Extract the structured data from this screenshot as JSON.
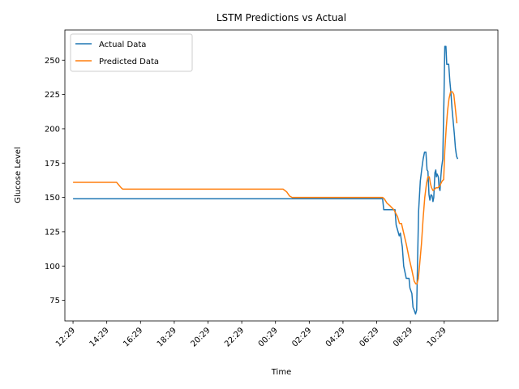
{
  "chart_data": {
    "type": "line",
    "title": "LSTM Predictions vs Actual",
    "xlabel": "Time",
    "ylabel": "Glucose Level",
    "ylim": [
      60,
      272
    ],
    "yticks": [
      75,
      100,
      125,
      150,
      175,
      200,
      225,
      250
    ],
    "xticks": [
      "12:29",
      "14:29",
      "16:29",
      "18:29",
      "20:29",
      "22:29",
      "00:29",
      "02:29",
      "04:29",
      "06:29",
      "08:29",
      "10:29"
    ],
    "xlim": [
      "12:00",
      "13:40+1"
    ],
    "grid": false,
    "legend_position": "top-left",
    "series": [
      {
        "name": "Actual Data",
        "color": "#1f77b4",
        "points": [
          [
            "12:29",
            149
          ],
          [
            "06:29",
            149
          ],
          [
            "06:50",
            149
          ],
          [
            "06:54",
            141
          ],
          [
            "07:34",
            141
          ],
          [
            "07:38",
            130
          ],
          [
            "07:49",
            122
          ],
          [
            "07:53",
            124
          ],
          [
            "08:00",
            114
          ],
          [
            "08:05",
            100
          ],
          [
            "08:14",
            91
          ],
          [
            "08:24",
            91
          ],
          [
            "08:27",
            84
          ],
          [
            "08:34",
            80
          ],
          [
            "08:38",
            70
          ],
          [
            "08:42",
            68
          ],
          [
            "08:47",
            65
          ],
          [
            "08:51",
            68
          ],
          [
            "08:54",
            100
          ],
          [
            "08:58",
            140
          ],
          [
            "09:04",
            162
          ],
          [
            "09:10",
            172
          ],
          [
            "09:14",
            178
          ],
          [
            "09:19",
            183
          ],
          [
            "09:24",
            183
          ],
          [
            "09:28",
            170
          ],
          [
            "09:31",
            169
          ],
          [
            "09:35",
            152
          ],
          [
            "09:38",
            148
          ],
          [
            "09:42",
            152
          ],
          [
            "09:46",
            151
          ],
          [
            "09:49",
            147
          ],
          [
            "09:52",
            150
          ],
          [
            "09:56",
            168
          ],
          [
            "09:59",
            170
          ],
          [
            "10:01",
            165
          ],
          [
            "10:04",
            167
          ],
          [
            "10:08",
            165
          ],
          [
            "10:11",
            157
          ],
          [
            "10:14",
            155
          ],
          [
            "10:17",
            165
          ],
          [
            "10:20",
            172
          ],
          [
            "10:24",
            178
          ],
          [
            "10:28",
            220
          ],
          [
            "10:31",
            260
          ],
          [
            "10:35",
            260
          ],
          [
            "10:38",
            247
          ],
          [
            "10:45",
            247
          ],
          [
            "10:49",
            235
          ],
          [
            "10:53",
            226
          ],
          [
            "10:57",
            214
          ],
          [
            "11:01",
            205
          ],
          [
            "11:05",
            196
          ],
          [
            "11:09",
            186
          ],
          [
            "11:13",
            180
          ],
          [
            "11:17",
            178
          ]
        ]
      },
      {
        "name": "Predicted Data",
        "color": "#ff7f0e",
        "points": [
          [
            "12:29",
            161
          ],
          [
            "15:04",
            161
          ],
          [
            "15:12",
            159
          ],
          [
            "15:20",
            157
          ],
          [
            "15:26",
            156
          ],
          [
            "00:56",
            156
          ],
          [
            "01:09",
            154
          ],
          [
            "01:19",
            151
          ],
          [
            "01:28",
            150
          ],
          [
            "06:50",
            150
          ],
          [
            "06:56",
            149
          ],
          [
            "07:05",
            146
          ],
          [
            "07:16",
            144
          ],
          [
            "07:30",
            141
          ],
          [
            "07:43",
            136
          ],
          [
            "07:50",
            131
          ],
          [
            "07:57",
            131
          ],
          [
            "08:05",
            124
          ],
          [
            "08:14",
            116
          ],
          [
            "08:24",
            106
          ],
          [
            "08:34",
            97
          ],
          [
            "08:42",
            89
          ],
          [
            "08:48",
            87
          ],
          [
            "08:52",
            87
          ],
          [
            "08:57",
            91
          ],
          [
            "09:02",
            102
          ],
          [
            "09:08",
            116
          ],
          [
            "09:14",
            135
          ],
          [
            "09:20",
            150
          ],
          [
            "09:26",
            160
          ],
          [
            "09:31",
            165
          ],
          [
            "09:36",
            165
          ],
          [
            "09:40",
            160
          ],
          [
            "09:44",
            157
          ],
          [
            "09:49",
            155
          ],
          [
            "09:55",
            156
          ],
          [
            "10:00",
            157
          ],
          [
            "10:06",
            157
          ],
          [
            "10:12",
            158
          ],
          [
            "10:17",
            160
          ],
          [
            "10:22",
            162
          ],
          [
            "10:27",
            163
          ],
          [
            "10:31",
            184
          ],
          [
            "10:36",
            200
          ],
          [
            "10:41",
            213
          ],
          [
            "10:46",
            222
          ],
          [
            "10:52",
            227
          ],
          [
            "10:58",
            227
          ],
          [
            "11:03",
            225
          ],
          [
            "11:08",
            216
          ],
          [
            "11:14",
            204
          ]
        ]
      }
    ]
  }
}
